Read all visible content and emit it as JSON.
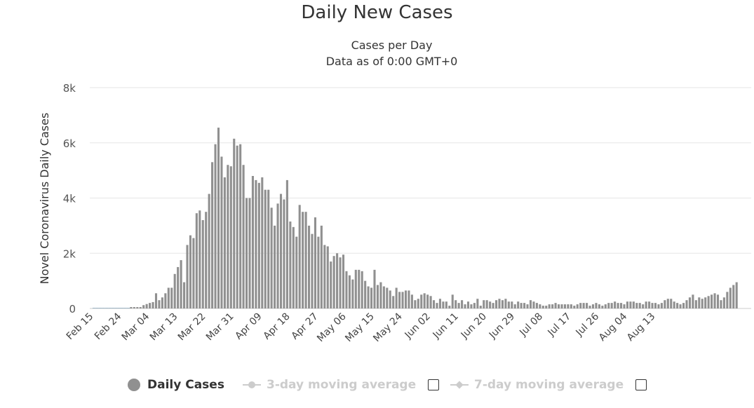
{
  "title": "Daily New Cases",
  "subtitle_line1": "Cases per Day",
  "subtitle_line2": "Data as of 0:00 GMT+0",
  "legend": {
    "daily": "Daily Cases",
    "avg3": "3-day moving average",
    "avg7": "7-day moving average"
  },
  "colors": {
    "bar": "#909090",
    "grid": "#e6e6e6",
    "legend_inactive": "#cccccc",
    "text": "#333333"
  },
  "chart_data": {
    "type": "bar",
    "ylabel": "Novel Coronavirus Daily Cases",
    "xlabel": "",
    "ylim": [
      0,
      8000
    ],
    "y_ticks": [
      0,
      2000,
      4000,
      6000,
      8000
    ],
    "y_tick_labels": [
      "0",
      "2k",
      "4k",
      "6k",
      "8k"
    ],
    "x_tick_labels": [
      "Feb 15",
      "Feb 24",
      "Mar 04",
      "Mar 13",
      "Mar 22",
      "Mar 31",
      "Apr 09",
      "Apr 18",
      "Apr 27",
      "May 06",
      "May 15",
      "May 24",
      "Jun 02",
      "Jun 11",
      "Jun 20",
      "Jun 29",
      "Jul 08",
      "Jul 17",
      "Jul 26",
      "Aug 04",
      "Aug 13"
    ],
    "x_start": "Feb 15",
    "grid": true,
    "legend_position": "bottom",
    "series": [
      {
        "name": "Daily Cases",
        "values": [
          0,
          0,
          0,
          0,
          0,
          0,
          0,
          0,
          0,
          0,
          0,
          0,
          50,
          50,
          50,
          50,
          120,
          160,
          200,
          230,
          550,
          300,
          400,
          550,
          750,
          750,
          1250,
          1500,
          1750,
          950,
          2300,
          2650,
          2550,
          3450,
          3550,
          3200,
          3500,
          4150,
          5300,
          5950,
          6550,
          5500,
          4750,
          5200,
          5150,
          6150,
          5900,
          5950,
          5200,
          4000,
          4000,
          4800,
          4650,
          4550,
          4750,
          4300,
          4300,
          3650,
          3000,
          3800,
          4150,
          3950,
          4650,
          3150,
          2950,
          2600,
          3750,
          3500,
          3500,
          3000,
          2700,
          3300,
          2600,
          3000,
          2300,
          2250,
          1700,
          1900,
          2000,
          1850,
          1950,
          1350,
          1200,
          1050,
          1400,
          1400,
          1350,
          1000,
          800,
          750,
          1400,
          850,
          950,
          800,
          750,
          650,
          450,
          750,
          600,
          600,
          650,
          650,
          500,
          300,
          350,
          500,
          550,
          500,
          450,
          300,
          200,
          350,
          250,
          250,
          100,
          500,
          300,
          200,
          300,
          150,
          250,
          150,
          200,
          350,
          100,
          300,
          300,
          250,
          200,
          300,
          350,
          300,
          350,
          250,
          250,
          150,
          250,
          200,
          200,
          150,
          300,
          250,
          200,
          150,
          100,
          100,
          150,
          150,
          200,
          150,
          150,
          150,
          150,
          150,
          100,
          150,
          200,
          200,
          200,
          100,
          150,
          200,
          150,
          100,
          150,
          200,
          200,
          250,
          200,
          200,
          150,
          250,
          250,
          250,
          200,
          200,
          150,
          250,
          250,
          200,
          200,
          150,
          200,
          300,
          350,
          350,
          250,
          200,
          150,
          200,
          300,
          400,
          500,
          300,
          400,
          350,
          400,
          450,
          500,
          550,
          500,
          300,
          400,
          600,
          750,
          850,
          950
        ]
      },
      {
        "name": "3-day moving average",
        "values": [],
        "visible": false
      },
      {
        "name": "7-day moving average",
        "values": [],
        "visible": false
      }
    ]
  }
}
